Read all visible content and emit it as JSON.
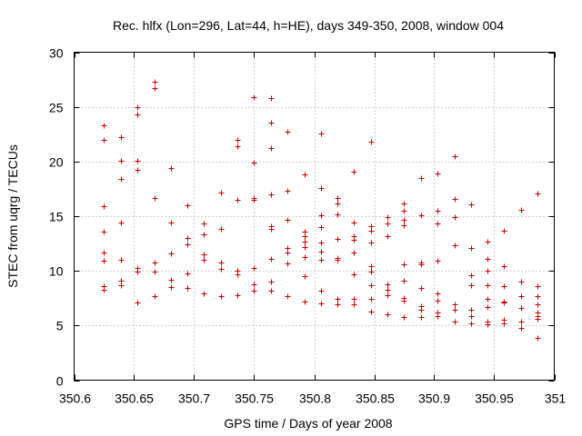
{
  "chart_data": {
    "type": "scatter",
    "title": "Rec. hlfx (Lon=296, Lat=44, h=HE), days 349-350, 2008, window 004",
    "xlabel": "GPS time / Days of year 2008",
    "ylabel": "STEC from uqrg / TECUs",
    "xlim": [
      350.6,
      351
    ],
    "ylim": [
      0,
      30
    ],
    "grid": true,
    "x_ticks": [
      "350.6",
      "350.65",
      "350.7",
      "350.75",
      "350.8",
      "350.85",
      "350.9",
      "350.95",
      "351"
    ],
    "y_ticks": [
      "0",
      "5",
      "10",
      "15",
      "20",
      "25",
      "30"
    ],
    "marker": "+",
    "color": "#cc0000",
    "points": [
      [
        350.625,
        23.3
      ],
      [
        350.625,
        22.0
      ],
      [
        350.625,
        15.9
      ],
      [
        350.625,
        13.6
      ],
      [
        350.625,
        11.7
      ],
      [
        350.625,
        10.9
      ],
      [
        350.625,
        8.6
      ],
      [
        350.625,
        8.3
      ],
      [
        350.639,
        22.2
      ],
      [
        350.639,
        20.1
      ],
      [
        350.639,
        18.4
      ],
      [
        350.639,
        14.4
      ],
      [
        350.639,
        11.0
      ],
      [
        350.639,
        9.1
      ],
      [
        350.639,
        8.7
      ],
      [
        350.653,
        25.0
      ],
      [
        350.653,
        24.3
      ],
      [
        350.653,
        20.1
      ],
      [
        350.653,
        19.2
      ],
      [
        350.653,
        10.3
      ],
      [
        350.653,
        9.9
      ],
      [
        350.653,
        7.1
      ],
      [
        350.667,
        27.3
      ],
      [
        350.667,
        26.7
      ],
      [
        350.667,
        16.7
      ],
      [
        350.667,
        10.8
      ],
      [
        350.667,
        9.9
      ],
      [
        350.667,
        7.7
      ],
      [
        350.681,
        19.4
      ],
      [
        350.681,
        14.4
      ],
      [
        350.681,
        11.6
      ],
      [
        350.681,
        9.2
      ],
      [
        350.681,
        8.5
      ],
      [
        350.694,
        16.0
      ],
      [
        350.694,
        13.0
      ],
      [
        350.694,
        12.4
      ],
      [
        350.694,
        9.8
      ],
      [
        350.694,
        8.4
      ],
      [
        350.708,
        14.3
      ],
      [
        350.708,
        13.3
      ],
      [
        350.708,
        11.5
      ],
      [
        350.708,
        11.0
      ],
      [
        350.708,
        7.9
      ],
      [
        350.722,
        17.2
      ],
      [
        350.722,
        13.8
      ],
      [
        350.722,
        10.8
      ],
      [
        350.722,
        10.2
      ],
      [
        350.722,
        7.7
      ],
      [
        350.736,
        22.0
      ],
      [
        350.736,
        21.4
      ],
      [
        350.736,
        16.5
      ],
      [
        350.736,
        10.0
      ],
      [
        350.736,
        9.7
      ],
      [
        350.736,
        7.8
      ],
      [
        350.75,
        25.9
      ],
      [
        350.75,
        19.9
      ],
      [
        350.75,
        16.7
      ],
      [
        350.75,
        16.5
      ],
      [
        350.75,
        10.3
      ],
      [
        350.75,
        8.8
      ],
      [
        350.75,
        8.2
      ],
      [
        350.764,
        25.8
      ],
      [
        350.764,
        23.6
      ],
      [
        350.764,
        21.2
      ],
      [
        350.764,
        17.0
      ],
      [
        350.764,
        14.1
      ],
      [
        350.764,
        13.8
      ],
      [
        350.764,
        11.1
      ],
      [
        350.764,
        9.0
      ],
      [
        350.764,
        8.2
      ],
      [
        350.778,
        22.7
      ],
      [
        350.778,
        17.3
      ],
      [
        350.778,
        14.7
      ],
      [
        350.778,
        12.1
      ],
      [
        350.778,
        11.7
      ],
      [
        350.778,
        10.7
      ],
      [
        350.778,
        7.7
      ],
      [
        350.792,
        18.8
      ],
      [
        350.792,
        13.6
      ],
      [
        350.792,
        13.2
      ],
      [
        350.792,
        12.7
      ],
      [
        350.792,
        12.2
      ],
      [
        350.792,
        11.3
      ],
      [
        350.792,
        9.5
      ],
      [
        350.792,
        7.2
      ],
      [
        350.806,
        22.6
      ],
      [
        350.806,
        17.6
      ],
      [
        350.806,
        15.1
      ],
      [
        350.806,
        14.0
      ],
      [
        350.806,
        12.6
      ],
      [
        350.806,
        11.8
      ],
      [
        350.806,
        11.0
      ],
      [
        350.806,
        8.2
      ],
      [
        350.806,
        7.0
      ],
      [
        350.819,
        16.7
      ],
      [
        350.819,
        16.2
      ],
      [
        350.819,
        15.2
      ],
      [
        350.819,
        12.9
      ],
      [
        350.819,
        11.2
      ],
      [
        350.819,
        11.0
      ],
      [
        350.819,
        7.4
      ],
      [
        350.819,
        6.9
      ],
      [
        350.833,
        19.1
      ],
      [
        350.833,
        14.4
      ],
      [
        350.833,
        13.2
      ],
      [
        350.833,
        12.8
      ],
      [
        350.833,
        11.7
      ],
      [
        350.833,
        9.7
      ],
      [
        350.833,
        7.4
      ],
      [
        350.833,
        6.9
      ],
      [
        350.847,
        21.8
      ],
      [
        350.847,
        14.1
      ],
      [
        350.847,
        13.7
      ],
      [
        350.847,
        12.6
      ],
      [
        350.847,
        10.4
      ],
      [
        350.847,
        9.9
      ],
      [
        350.847,
        8.7
      ],
      [
        350.847,
        7.4
      ],
      [
        350.847,
        6.3
      ],
      [
        350.861,
        14.9
      ],
      [
        350.861,
        14.3
      ],
      [
        350.861,
        13.2
      ],
      [
        350.861,
        8.8
      ],
      [
        350.861,
        8.3
      ],
      [
        350.861,
        7.8
      ],
      [
        350.861,
        6.0
      ],
      [
        350.875,
        16.2
      ],
      [
        350.875,
        15.5
      ],
      [
        350.875,
        14.7
      ],
      [
        350.875,
        14.2
      ],
      [
        350.875,
        10.6
      ],
      [
        350.875,
        9.1
      ],
      [
        350.875,
        7.5
      ],
      [
        350.875,
        7.3
      ],
      [
        350.875,
        5.8
      ],
      [
        350.889,
        18.5
      ],
      [
        350.889,
        15.1
      ],
      [
        350.889,
        10.8
      ],
      [
        350.889,
        10.6
      ],
      [
        350.889,
        8.4
      ],
      [
        350.889,
        6.8
      ],
      [
        350.889,
        6.4
      ],
      [
        350.889,
        5.8
      ],
      [
        350.903,
        18.9
      ],
      [
        350.903,
        15.5
      ],
      [
        350.903,
        14.3
      ],
      [
        350.903,
        10.9
      ],
      [
        350.903,
        7.9
      ],
      [
        350.903,
        7.3
      ],
      [
        350.903,
        6.2
      ],
      [
        350.903,
        5.9
      ],
      [
        350.917,
        20.5
      ],
      [
        350.917,
        16.6
      ],
      [
        350.917,
        14.9
      ],
      [
        350.917,
        12.3
      ],
      [
        350.917,
        6.9
      ],
      [
        350.917,
        6.4
      ],
      [
        350.917,
        5.4
      ],
      [
        350.931,
        16.1
      ],
      [
        350.931,
        12.1
      ],
      [
        350.931,
        9.6
      ],
      [
        350.931,
        8.7
      ],
      [
        350.931,
        6.4
      ],
      [
        350.931,
        5.9
      ],
      [
        350.931,
        5.2
      ],
      [
        350.944,
        12.7
      ],
      [
        350.944,
        11.1
      ],
      [
        350.944,
        10.0
      ],
      [
        350.944,
        8.7
      ],
      [
        350.944,
        7.4
      ],
      [
        350.944,
        6.7
      ],
      [
        350.944,
        5.4
      ],
      [
        350.944,
        5.1
      ],
      [
        350.958,
        13.7
      ],
      [
        350.958,
        10.4
      ],
      [
        350.958,
        8.6
      ],
      [
        350.958,
        7.2
      ],
      [
        350.958,
        7.1
      ],
      [
        350.958,
        5.5
      ],
      [
        350.958,
        5.2
      ],
      [
        350.972,
        15.6
      ],
      [
        350.972,
        9.0
      ],
      [
        350.972,
        7.7
      ],
      [
        350.972,
        6.6
      ],
      [
        350.972,
        5.4
      ],
      [
        350.972,
        4.8
      ],
      [
        350.986,
        17.1
      ],
      [
        350.986,
        8.6
      ],
      [
        350.986,
        7.7
      ],
      [
        350.986,
        6.9
      ],
      [
        350.986,
        6.2
      ],
      [
        350.986,
        5.9
      ],
      [
        350.986,
        5.6
      ],
      [
        350.986,
        3.9
      ]
    ]
  }
}
